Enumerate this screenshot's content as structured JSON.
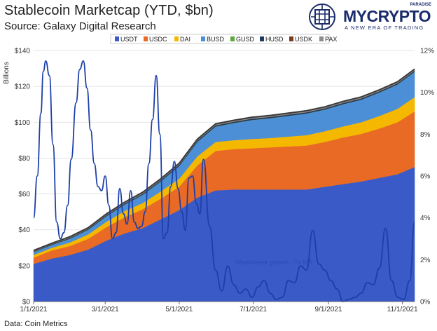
{
  "header": {
    "title": "Stablecoin Marketcap (YTD, $bn)",
    "subtitle": "Source: Galaxy Digital Research"
  },
  "footer": {
    "source": "Data: Coin Metrics"
  },
  "brand": {
    "name": "MYCRYPTO",
    "tagline": "A NEW ERA OF TRADING",
    "tag_top": "PARADISE",
    "color": "#1b2c6b"
  },
  "chart_data": {
    "type": "area",
    "title": "Stablecoin Marketcap (YTD, $bn)",
    "ylabel": "Billions",
    "ylim": [
      0,
      140
    ],
    "y2lim": [
      0,
      12
    ],
    "yticks": [
      "$0",
      "$20",
      "$40",
      "$60",
      "$80",
      "$100",
      "$120",
      "$140"
    ],
    "y2ticks": [
      "0%",
      "2%",
      "4%",
      "6%",
      "8%",
      "10%",
      "12%"
    ],
    "xticks": [
      "1/1/2021",
      "3/1/2021",
      "5/1/2021",
      "7/1/2021",
      "9/1/2021",
      "11/1/2021"
    ],
    "legend_position": "top",
    "x": [
      0,
      15,
      30,
      45,
      60,
      75,
      90,
      105,
      120,
      135,
      150,
      165,
      180,
      195,
      210,
      225,
      240,
      255,
      270,
      285,
      300,
      314
    ],
    "series": [
      {
        "name": "USDT",
        "color": "#3a5bc7",
        "values": [
          21,
          24,
          26,
          29,
          34,
          38,
          41,
          46,
          51,
          58,
          62,
          62.5,
          62.5,
          62.5,
          62.5,
          62.5,
          64,
          65.5,
          67,
          69,
          71,
          75
        ]
      },
      {
        "name": "USDC",
        "color": "#e86a24",
        "values": [
          3.5,
          4.5,
          5,
          6,
          7.5,
          9,
          10.5,
          11.5,
          13,
          18,
          22,
          22.5,
          23,
          23.5,
          24,
          24.5,
          25,
          26,
          26.5,
          27.5,
          29,
          31
        ]
      },
      {
        "name": "DAI",
        "color": "#f5b800",
        "values": [
          1.5,
          1.5,
          2,
          2.5,
          3,
          3.5,
          3.5,
          4,
          4.5,
          5,
          5,
          5,
          5.2,
          5.2,
          5.5,
          5.8,
          6,
          6.2,
          6.5,
          7,
          7.5,
          8
        ]
      },
      {
        "name": "BUSD",
        "color": "#4d8fd6",
        "values": [
          1.5,
          1.5,
          2,
          2.5,
          3,
          3.5,
          4.5,
          5.5,
          7,
          8,
          8.5,
          9.5,
          10.5,
          11,
          11.5,
          12,
          12,
          12.3,
          12.5,
          13,
          13.5,
          14
        ]
      },
      {
        "name": "GUSD",
        "color": "#5ea83c",
        "values": [
          0.1,
          0.1,
          0.1,
          0.1,
          0.1,
          0.1,
          0.1,
          0.1,
          0.1,
          0.1,
          0.1,
          0.1,
          0.1,
          0.1,
          0.1,
          0.1,
          0.1,
          0.1,
          0.1,
          0.1,
          0.1,
          0.1
        ]
      },
      {
        "name": "HUSD",
        "color": "#1f3864",
        "values": [
          0.3,
          0.3,
          0.4,
          0.4,
          0.5,
          0.5,
          0.5,
          0.6,
          0.6,
          0.6,
          0.6,
          0.6,
          0.6,
          0.6,
          0.6,
          0.6,
          0.6,
          0.6,
          0.6,
          0.6,
          0.6,
          0.6
        ]
      },
      {
        "name": "USDK",
        "color": "#7a3c1e",
        "values": [
          0.1,
          0.1,
          0.1,
          0.1,
          0.1,
          0.1,
          0.1,
          0.1,
          0.1,
          0.1,
          0.1,
          0.1,
          0.1,
          0.1,
          0.1,
          0.1,
          0.1,
          0.1,
          0.1,
          0.1,
          0.1,
          0.1
        ]
      },
      {
        "name": "PAX",
        "color": "#8c8c8c",
        "values": [
          0.5,
          0.5,
          0.6,
          0.6,
          0.7,
          0.7,
          0.8,
          0.8,
          0.8,
          0.8,
          0.8,
          0.8,
          0.8,
          0.8,
          0.8,
          0.8,
          0.8,
          0.8,
          0.8,
          0.8,
          0.8,
          0.8
        ]
      }
    ],
    "secondary_line": {
      "name": "Week/week growth - 7d MA",
      "color": "#1c3fa8",
      "x": [
        0,
        3,
        6,
        8,
        10,
        13,
        16,
        19,
        22,
        25,
        28,
        31,
        35,
        38,
        41,
        44,
        47,
        50,
        53,
        56,
        59,
        62,
        65,
        68,
        71,
        74,
        77,
        80,
        83,
        86,
        89,
        92,
        95,
        98,
        101,
        104,
        107,
        110,
        113,
        116,
        119,
        122,
        125,
        128,
        131,
        134,
        137,
        140,
        145,
        150,
        155,
        160,
        165,
        170,
        175,
        180,
        185,
        190,
        195,
        200,
        205,
        210,
        215,
        220,
        225,
        230,
        235,
        240,
        245,
        250,
        255,
        260,
        265,
        270,
        275,
        280,
        285,
        290,
        295,
        300,
        305,
        310,
        314
      ],
      "y": [
        4.0,
        6.0,
        9.0,
        11.0,
        11.5,
        10.8,
        7.5,
        3.8,
        3.0,
        3.3,
        4.6,
        6.8,
        9.5,
        11.1,
        11.5,
        10.2,
        8.2,
        6.6,
        5.5,
        5.3,
        6.0,
        4.6,
        3.0,
        3.3,
        5.4,
        4.2,
        3.7,
        5.3,
        3.8,
        3.5,
        3.6,
        4.3,
        6.6,
        8.7,
        10.8,
        8.0,
        3.0,
        3.3,
        5.5,
        6.7,
        5.4,
        4.3,
        3.4,
        5.9,
        6.0,
        4.7,
        4.2,
        6.8,
        3.6,
        1.5,
        0.5,
        1.7,
        0.8,
        0.4,
        0.6,
        0.2,
        0.7,
        1.0,
        0.4,
        0.1,
        0.2,
        1.0,
        0.9,
        1.7,
        1.5,
        3.4,
        1.8,
        1.5,
        1.0,
        0.6,
        0.0,
        0.1,
        0.2,
        0.4,
        0.9,
        0.8,
        1.6,
        3.5,
        1.0,
        0.2,
        0.1,
        1.0,
        3.8
      ]
    },
    "annotations": [
      {
        "text": "Week/week growth - 7d MA"
      }
    ]
  }
}
